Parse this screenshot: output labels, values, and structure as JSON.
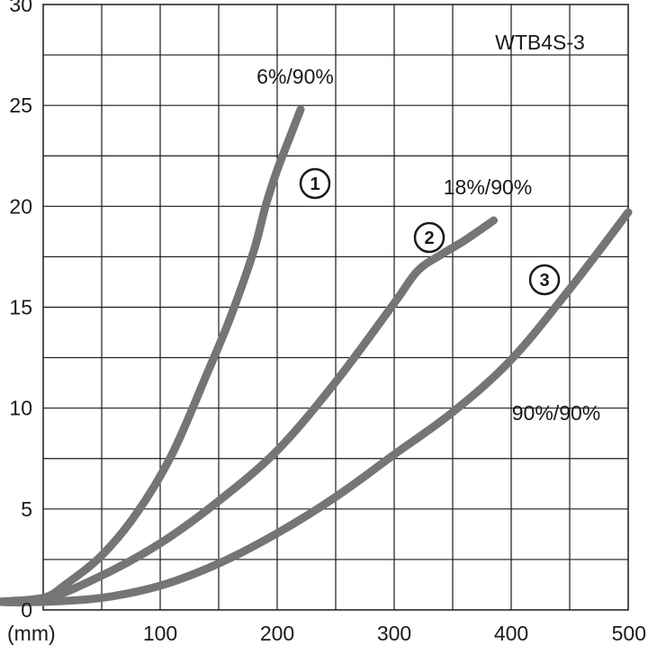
{
  "chart_data": {
    "type": "line",
    "title": "",
    "xlabel": "(mm)",
    "ylabel": "",
    "xlim": [
      0,
      500
    ],
    "ylim": [
      0,
      30
    ],
    "x_ticks": [
      100,
      200,
      300,
      400,
      500
    ],
    "y_ticks": [
      0,
      5,
      10,
      15,
      20,
      25,
      30
    ],
    "x_tick_labels": [
      "100",
      "200",
      "300",
      "400",
      "500"
    ],
    "y_tick_labels": [
      "0",
      "5",
      "10",
      "15",
      "20",
      "25",
      "30"
    ],
    "grid": true,
    "line_color": "#757575",
    "series": [
      {
        "marker": "1",
        "label": "6%/90%",
        "x": [
          -40,
          0,
          20,
          50,
          80,
          110,
          140,
          160,
          180,
          190,
          200,
          210,
          220
        ],
        "y": [
          0.4,
          0.6,
          1.3,
          2.7,
          4.8,
          7.7,
          11.7,
          14.5,
          17.8,
          20.0,
          21.8,
          23.3,
          24.8
        ]
      },
      {
        "marker": "2",
        "label": "18%/90%",
        "x": [
          -40,
          0,
          50,
          100,
          150,
          200,
          250,
          300,
          320,
          340,
          360,
          385
        ],
        "y": [
          0.4,
          0.5,
          1.7,
          3.3,
          5.4,
          7.9,
          11.3,
          15.2,
          16.8,
          17.6,
          18.3,
          19.3
        ]
      },
      {
        "marker": "3",
        "label": "90%/90%",
        "x": [
          -40,
          0,
          50,
          100,
          150,
          200,
          250,
          300,
          350,
          400,
          450,
          500
        ],
        "y": [
          0.4,
          0.4,
          0.6,
          1.2,
          2.3,
          3.8,
          5.6,
          7.7,
          9.8,
          12.4,
          15.9,
          19.7
        ]
      }
    ]
  },
  "annotations": {
    "model": "WTB4S-3"
  }
}
